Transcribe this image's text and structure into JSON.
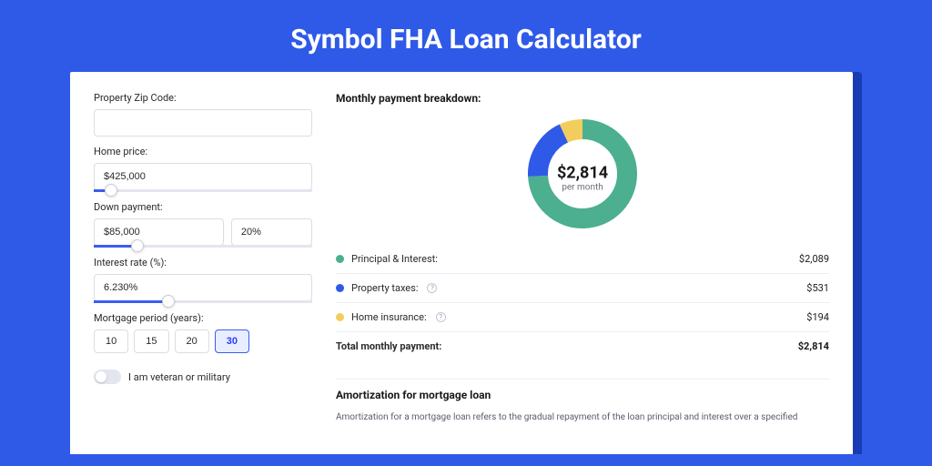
{
  "title": "Symbol FHA Loan Calculator",
  "form": {
    "zip_label": "Property Zip Code:",
    "zip_value": "",
    "price_label": "Home price:",
    "price_value": "$425,000",
    "price_slider_pct": 8,
    "down_label": "Down payment:",
    "down_value": "$85,000",
    "down_pct": "20%",
    "down_slider_pct": 20,
    "rate_label": "Interest rate (%):",
    "rate_value": "6.230%",
    "rate_slider_pct": 34,
    "period_label": "Mortgage period (years):",
    "periods": [
      "10",
      "15",
      "20",
      "30"
    ],
    "period_active_index": 3,
    "veteran_label": "I am veteran or military",
    "veteran_on": false
  },
  "breakdown": {
    "title": "Monthly payment breakdown:",
    "center_amount": "$2,814",
    "center_sub": "per month",
    "donut": {
      "size": 120,
      "thickness": 22,
      "slices": [
        {
          "label": "Principal & Interest:",
          "value": 2089,
          "display": "$2,089",
          "color": "#4caf8f",
          "pct": 74.2,
          "has_info": false
        },
        {
          "label": "Property taxes:",
          "value": 531,
          "display": "$531",
          "color": "#2f5ae8",
          "pct": 18.9,
          "has_info": true
        },
        {
          "label": "Home insurance:",
          "value": 194,
          "display": "$194",
          "color": "#f2cd5d",
          "pct": 6.9,
          "has_info": true
        }
      ]
    },
    "total_label": "Total monthly payment:",
    "total_value": "$2,814"
  },
  "amortization": {
    "title": "Amortization for mortgage loan",
    "text": "Amortization for a mortgage loan refers to the gradual repayment of the loan principal and interest over a specified"
  }
}
